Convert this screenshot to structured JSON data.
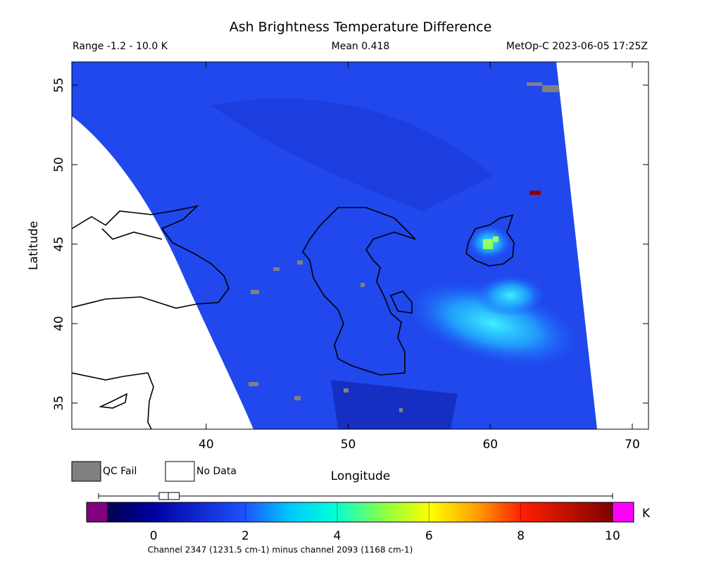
{
  "title": "Ash Brightness Temperature Difference",
  "header": {
    "range": "Range -1.2 - 10.0 K",
    "mean": "Mean 0.418",
    "satellite": "MetOp-C 2023-06-05 17:25Z"
  },
  "map": {
    "x_label": "Longitude",
    "y_label": "Latitude",
    "xlim": [
      30.54,
      71.14
    ],
    "ylim": [
      33.36,
      56.46
    ],
    "xticks": [
      40,
      50,
      60,
      70
    ],
    "yticks": [
      35,
      40,
      45,
      50,
      55
    ]
  },
  "legend": [
    {
      "label": "QC Fail",
      "color": "#808080"
    },
    {
      "label": "No Data",
      "color": "#ffffff"
    }
  ],
  "colorbar": {
    "lim": [
      -1,
      10
    ],
    "ticks": [
      0,
      2,
      4,
      6,
      8,
      10
    ],
    "unit": "K",
    "under_color": "#800080",
    "over_color": "#ff00ff",
    "stats": {
      "min": -1.2,
      "q1": 0.12,
      "median": 0.32,
      "q3": 0.56,
      "max": 10
    }
  },
  "caption": "Channel 2347 (1231.5 cm-1) minus channel 2093 (1168 cm-1)"
}
